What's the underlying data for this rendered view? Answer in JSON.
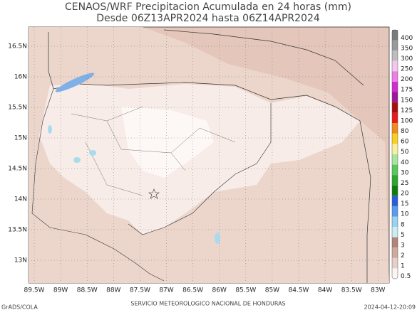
{
  "header": {
    "title": "CENAOS/WRF Precipitacion Acumulada en 24 horas (mm)",
    "subtitle": "Desde 06Z13APR2024 hasta 06Z14APR2024"
  },
  "map": {
    "lon_labels": [
      "89.5W",
      "89W",
      "88.5W",
      "88W",
      "87.5W",
      "87W",
      "86.5W",
      "86W",
      "85.5W",
      "85W",
      "84.5W",
      "84W",
      "83.5W",
      "83W"
    ],
    "lat_labels": [
      "16.5N",
      "16N",
      "15.5N",
      "15N",
      "14.5N",
      "14N",
      "13.5N",
      "13N"
    ]
  },
  "colorbar": {
    "levels": [
      {
        "label": "400",
        "color": "#7a7a7a"
      },
      {
        "label": "350",
        "color": "#9a9a9a"
      },
      {
        "label": "300",
        "color": "#bdbdbd"
      },
      {
        "label": "250",
        "color": "#f4c6ee"
      },
      {
        "label": "200",
        "color": "#ee7fe6"
      },
      {
        "label": "175",
        "color": "#d42ad4"
      },
      {
        "label": "150",
        "color": "#a0169a"
      },
      {
        "label": "125",
        "color": "#a80c0c"
      },
      {
        "label": "100",
        "color": "#e81a1a"
      },
      {
        "label": "80",
        "color": "#f28a1a"
      },
      {
        "label": "60",
        "color": "#f7d020"
      },
      {
        "label": "50",
        "color": "#f8f0a0"
      },
      {
        "label": "40",
        "color": "#a8e6a0"
      },
      {
        "label": "30",
        "color": "#58c858"
      },
      {
        "label": "25",
        "color": "#2aa82a"
      },
      {
        "label": "20",
        "color": "#107c10"
      },
      {
        "label": "15",
        "color": "#2a5ed8"
      },
      {
        "label": "10",
        "color": "#5a9af0"
      },
      {
        "label": "8",
        "color": "#9ad2f4"
      },
      {
        "label": "5",
        "color": "#c8eef4"
      },
      {
        "label": "3",
        "color": "#b48478"
      },
      {
        "label": "2",
        "color": "#d0aa9c"
      },
      {
        "label": "1",
        "color": "#e6d0c6"
      },
      {
        "label": "0.5",
        "color": "#fbf4f0"
      }
    ]
  },
  "footer": {
    "left": "GrADS/COLA",
    "center": "SERVICIO METEOROLOGICO NACIONAL DE HONDURAS",
    "right": "2024-04-12-20:09"
  }
}
